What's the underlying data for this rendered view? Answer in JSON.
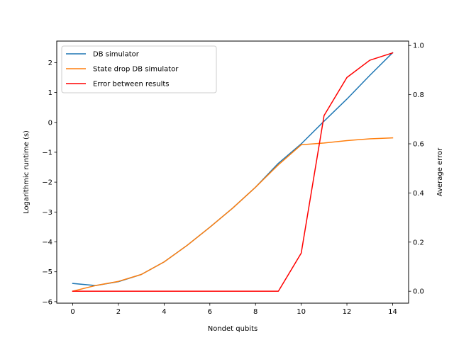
{
  "chart_data": {
    "type": "line",
    "xlabel": "Nondet qubits",
    "ylabel": "Logarithmic runtime (s)",
    "y2label": "Average error",
    "xlim": [
      -0.7,
      14.7
    ],
    "ylim": [
      -6.05,
      2.72
    ],
    "y2lim": [
      -0.0485,
      1.018
    ],
    "x_ticks": [
      0,
      2,
      4,
      6,
      8,
      10,
      12,
      14
    ],
    "y_ticks": [
      -6,
      -5,
      -4,
      -3,
      -2,
      -1,
      0,
      1,
      2
    ],
    "y2_ticks": [
      0.0,
      0.2,
      0.4,
      0.6,
      0.8,
      1.0
    ],
    "x_tick_labels": [
      "0",
      "2",
      "4",
      "6",
      "8",
      "10",
      "12",
      "14"
    ],
    "y_tick_labels": [
      "−6",
      "−5",
      "−4",
      "−3",
      "−2",
      "−1",
      "0",
      "1",
      "2"
    ],
    "y2_tick_labels": [
      "0.0",
      "0.2",
      "0.4",
      "0.6",
      "0.8",
      "1.0"
    ],
    "legend_position": "upper-left",
    "grid": false,
    "x": [
      0,
      1,
      2,
      3,
      4,
      5,
      6,
      7,
      8,
      9,
      10,
      11,
      12,
      13,
      14
    ],
    "series": [
      {
        "name": "DB simulator",
        "axis": "left",
        "color": "#1f77b4",
        "values": [
          -5.39,
          -5.46,
          -5.33,
          -5.09,
          -4.67,
          -4.12,
          -3.51,
          -2.87,
          -2.17,
          -1.37,
          -0.72,
          0.04,
          0.78,
          1.57,
          2.33
        ]
      },
      {
        "name": "State drop DB simulator",
        "axis": "left",
        "color": "#ff7f0e",
        "values": [
          -5.65,
          -5.46,
          -5.32,
          -5.09,
          -4.67,
          -4.12,
          -3.51,
          -2.87,
          -2.17,
          -1.42,
          -0.75,
          -0.69,
          -0.61,
          -0.55,
          -0.52
        ]
      },
      {
        "name": "Error between results",
        "axis": "right",
        "color": "#ff0000",
        "values": [
          0.0,
          0.0,
          0.0,
          0.0,
          0.0,
          0.0,
          0.0,
          0.0,
          0.0,
          0.0,
          0.155,
          0.715,
          0.87,
          0.94,
          0.97
        ]
      }
    ]
  }
}
